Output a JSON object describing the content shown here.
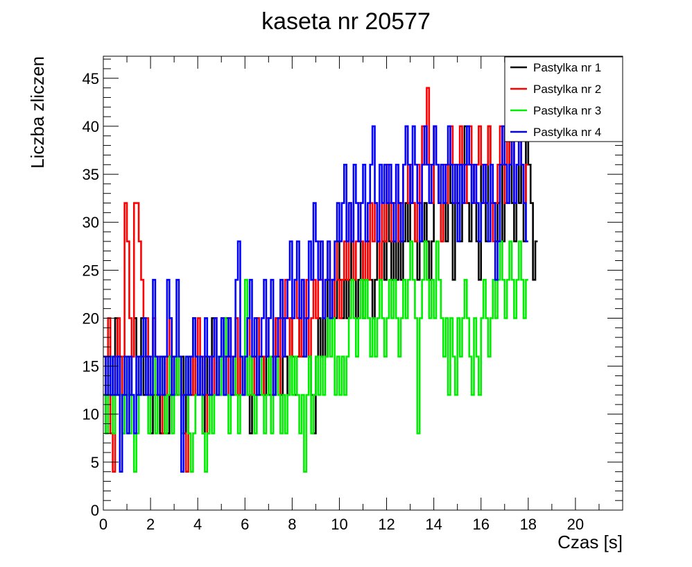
{
  "chart_data": {
    "type": "line",
    "title": "kaseta nr 20577",
    "xlabel": "Czas [s]",
    "ylabel": "Liczba zliczen",
    "xlim": [
      0,
      22
    ],
    "ylim": [
      0,
      47.3
    ],
    "x_ticks": [
      "0",
      "2",
      "4",
      "6",
      "8",
      "10",
      "12",
      "14",
      "16",
      "18",
      "20"
    ],
    "y_ticks": [
      "0",
      "5",
      "10",
      "15",
      "20",
      "25",
      "30",
      "35",
      "40",
      "45"
    ],
    "grid": false,
    "legend_position": "top-right",
    "x_start": 0,
    "x_step": 0.1,
    "series": [
      {
        "name": "Pastylka nr 1",
        "color": "#000000",
        "values": [
          12,
          8,
          12,
          16,
          12,
          20,
          12,
          16,
          8,
          12,
          16,
          12,
          16,
          20,
          12,
          16,
          20,
          12,
          16,
          12,
          8,
          12,
          16,
          12,
          8,
          16,
          12,
          8,
          12,
          16,
          12,
          16,
          12,
          16,
          8,
          12,
          16,
          12,
          20,
          12,
          16,
          12,
          8,
          16,
          12,
          16,
          20,
          12,
          16,
          12,
          16,
          12,
          20,
          16,
          12,
          16,
          20,
          12,
          16,
          12,
          16,
          12,
          8,
          12,
          16,
          20,
          12,
          16,
          12,
          20,
          12,
          16,
          12,
          20,
          16,
          12,
          20,
          16,
          12,
          20,
          16,
          12,
          16,
          20,
          16,
          16,
          20,
          16,
          12,
          8,
          16,
          20,
          16,
          20,
          16,
          24,
          20,
          24,
          20,
          28,
          24,
          20,
          24,
          20,
          24,
          28,
          24,
          20,
          24,
          28,
          20,
          24,
          28,
          24,
          20,
          24,
          28,
          24,
          28,
          24,
          32,
          28,
          24,
          28,
          24,
          32,
          24,
          28,
          32,
          28,
          36,
          32,
          28,
          24,
          32,
          28,
          32,
          28,
          24,
          28,
          40,
          36,
          32,
          28,
          32,
          28,
          36,
          32,
          24,
          36,
          32,
          28,
          36,
          40,
          32,
          28,
          36,
          32,
          28,
          24,
          36,
          32,
          28,
          40,
          36,
          32,
          28,
          32,
          36,
          28,
          36,
          32,
          40,
          32,
          28,
          36,
          32,
          36,
          28,
          40,
          36,
          32,
          24,
          28
        ]
      },
      {
        "name": "Pastylka nr 2",
        "color": "#ff0000",
        "values": [
          12,
          16,
          20,
          8,
          4,
          16,
          20,
          12,
          16,
          32,
          28,
          20,
          16,
          32,
          32,
          28,
          24,
          16,
          20,
          12,
          16,
          20,
          12,
          16,
          12,
          8,
          12,
          16,
          20,
          12,
          16,
          12,
          16,
          12,
          8,
          4,
          12,
          16,
          12,
          16,
          20,
          12,
          16,
          12,
          8,
          16,
          12,
          20,
          12,
          16,
          20,
          16,
          12,
          20,
          16,
          12,
          20,
          12,
          16,
          12,
          16,
          20,
          12,
          16,
          12,
          20,
          16,
          12,
          16,
          20,
          16,
          12,
          16,
          20,
          12,
          20,
          16,
          24,
          20,
          16,
          20,
          24,
          20,
          16,
          24,
          20,
          24,
          16,
          20,
          24,
          20,
          28,
          24,
          20,
          24,
          28,
          24,
          20,
          28,
          24,
          20,
          24,
          28,
          24,
          32,
          28,
          24,
          28,
          32,
          28,
          24,
          28,
          24,
          32,
          28,
          32,
          28,
          24,
          32,
          28,
          36,
          32,
          28,
          32,
          36,
          28,
          32,
          36,
          40,
          32,
          36,
          32,
          28,
          36,
          32,
          40,
          36,
          44,
          36,
          32,
          40,
          36,
          32,
          28,
          36,
          32,
          36,
          40,
          36,
          32,
          36,
          40,
          36,
          32,
          36,
          40,
          36,
          32,
          36,
          40,
          36,
          32,
          36,
          40,
          32,
          28,
          32,
          36,
          40,
          36,
          32,
          40,
          36,
          40,
          32,
          36,
          40,
          36,
          32,
          36
        ]
      },
      {
        "name": "Pastylka nr 3",
        "color": "#00ee00",
        "values": [
          12,
          8,
          12,
          16,
          8,
          12,
          16,
          12,
          8,
          16,
          12,
          8,
          12,
          4,
          8,
          12,
          16,
          20,
          12,
          8,
          12,
          16,
          8,
          12,
          16,
          12,
          8,
          12,
          16,
          8,
          12,
          16,
          12,
          8,
          12,
          16,
          8,
          4,
          8,
          12,
          16,
          12,
          8,
          4,
          8,
          12,
          8,
          12,
          16,
          12,
          16,
          20,
          12,
          8,
          12,
          16,
          12,
          8,
          12,
          16,
          24,
          12,
          16,
          12,
          8,
          12,
          16,
          12,
          8,
          12,
          16,
          8,
          12,
          16,
          12,
          8,
          12,
          8,
          12,
          16,
          12,
          16,
          12,
          8,
          12,
          4,
          12,
          16,
          8,
          12,
          16,
          12,
          16,
          12,
          16,
          20,
          16,
          20,
          12,
          16,
          12,
          16,
          12,
          16,
          20,
          24,
          20,
          16,
          20,
          24,
          20,
          24,
          20,
          16,
          20,
          16,
          20,
          24,
          20,
          16,
          20,
          24,
          20,
          24,
          20,
          16,
          20,
          24,
          20,
          24,
          28,
          24,
          20,
          8,
          20,
          24,
          28,
          24,
          20,
          24,
          20,
          28,
          24,
          20,
          16,
          20,
          12,
          20,
          16,
          12,
          20,
          16,
          20,
          24,
          20,
          16,
          12,
          20,
          16,
          12,
          20,
          24,
          20,
          16,
          20,
          24,
          20,
          24,
          28,
          24,
          20,
          24,
          28,
          24,
          20,
          24,
          28,
          24,
          20,
          24
        ]
      },
      {
        "name": "Pastylka nr 4",
        "color": "#0000ff",
        "values": [
          16,
          12,
          16,
          12,
          16,
          12,
          16,
          4,
          12,
          16,
          8,
          16,
          12,
          8,
          16,
          12,
          16,
          20,
          12,
          16,
          12,
          24,
          16,
          12,
          16,
          12,
          16,
          24,
          20,
          12,
          16,
          24,
          16,
          4,
          12,
          16,
          12,
          16,
          20,
          16,
          12,
          16,
          12,
          20,
          16,
          12,
          16,
          20,
          12,
          16,
          20,
          12,
          16,
          20,
          12,
          16,
          24,
          28,
          16,
          12,
          16,
          20,
          24,
          16,
          20,
          12,
          16,
          20,
          24,
          16,
          20,
          24,
          12,
          16,
          20,
          24,
          16,
          20,
          24,
          28,
          20,
          24,
          28,
          20,
          24,
          16,
          20,
          28,
          24,
          32,
          28,
          24,
          28,
          20,
          24,
          28,
          20,
          24,
          28,
          32,
          28,
          32,
          36,
          28,
          32,
          28,
          36,
          32,
          28,
          32,
          36,
          28,
          32,
          36,
          40,
          32,
          28,
          36,
          32,
          36,
          32,
          36,
          32,
          28,
          36,
          32,
          28,
          36,
          40,
          36,
          32,
          40,
          36,
          32,
          28,
          36,
          40,
          36,
          32,
          36,
          40,
          36,
          32,
          36,
          32,
          36,
          40,
          36,
          32,
          36,
          28,
          36,
          32,
          36,
          40,
          36,
          32,
          36,
          32,
          28,
          32,
          36,
          32,
          28,
          36,
          32,
          24,
          28,
          36,
          40,
          36,
          32,
          36,
          40,
          32,
          36,
          40,
          36,
          32,
          28
        ]
      }
    ]
  }
}
